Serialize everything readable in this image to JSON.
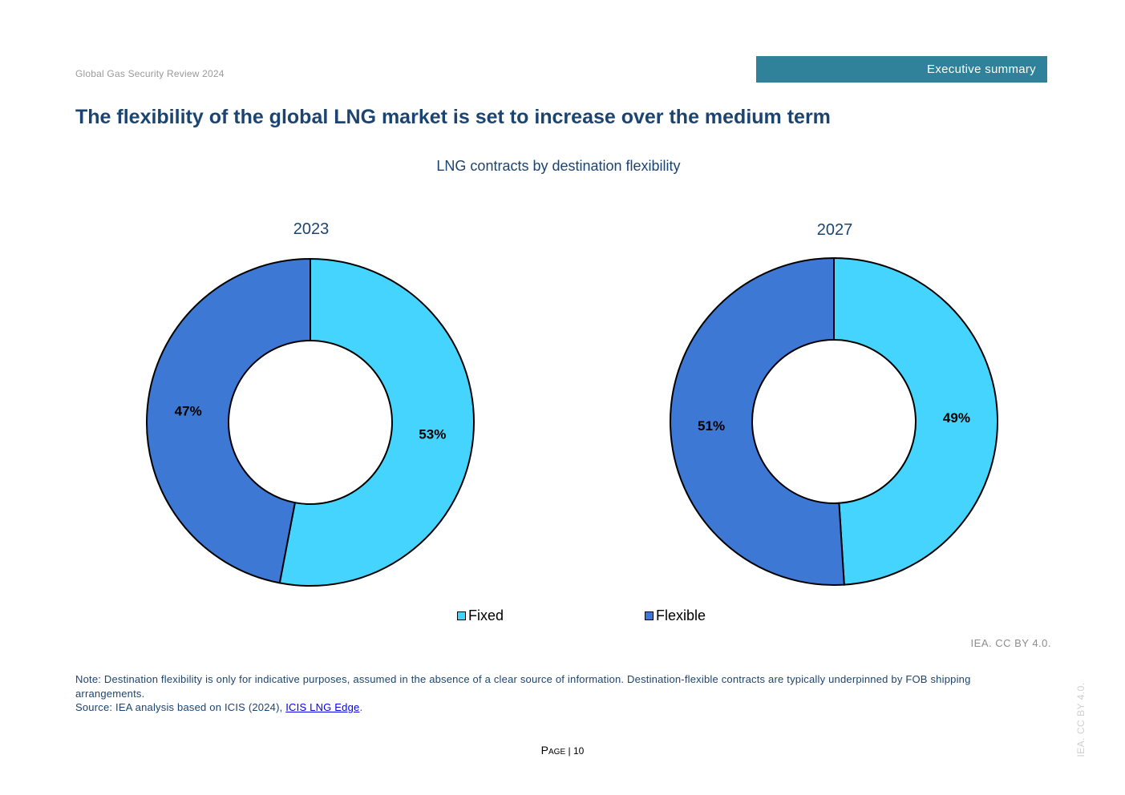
{
  "header": {
    "report_name": "Global Gas Security Review 2024",
    "section": "Executive summary"
  },
  "page_title": "The flexibility of the global LNG market is set to increase over the medium term",
  "colors": {
    "fixed": "#45d4fd",
    "flexible": "#3d78d4",
    "header_bar": "#2f8299",
    "title_text": "#1c4470"
  },
  "chart_data": {
    "type": "pie",
    "subtype": "donut",
    "title": "LNG contracts by destination flexibility",
    "legend": [
      "Fixed",
      "Flexible"
    ],
    "legend_position": "bottom",
    "charts": [
      {
        "title": "2023",
        "slices": [
          {
            "name": "Fixed",
            "value": 53,
            "label": "53%"
          },
          {
            "name": "Flexible",
            "value": 47,
            "label": "47%"
          }
        ]
      },
      {
        "title": "2027",
        "slices": [
          {
            "name": "Fixed",
            "value": 49,
            "label": "49%"
          },
          {
            "name": "Flexible",
            "value": 51,
            "label": "51%"
          }
        ]
      }
    ]
  },
  "credit": "IEA. CC BY 4.0.",
  "notes": {
    "note": "Note: Destination flexibility is only for indicative purposes, assumed in the absence of a clear source of information. Destination-flexible contracts are typically underpinned by FOB shipping arrangements.",
    "source_prefix": "Source: IEA analysis based on ICIS (2024), ",
    "source_link": "ICIS LNG Edge",
    "source_suffix": "."
  },
  "footer": {
    "page_word": "Page",
    "separator": "|",
    "page_number": "10"
  },
  "side_credit": "IEA. CC BY 4.0."
}
